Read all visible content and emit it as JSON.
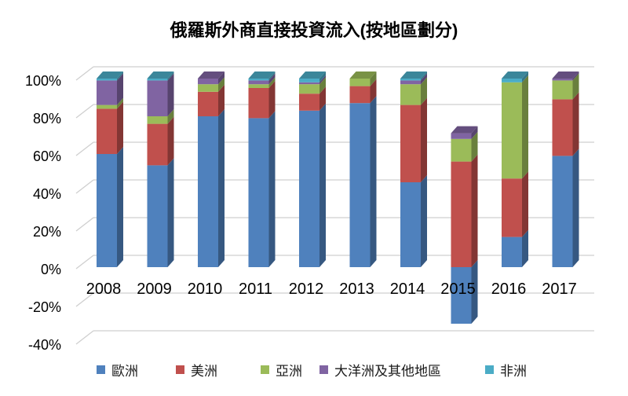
{
  "title": "俄羅斯外商直接投資流入(按地區劃分)",
  "chart_data": {
    "type": "bar",
    "stacked": true,
    "three_d": true,
    "title": "俄羅斯外商直接投資流入(按地區劃分)",
    "categories": [
      "2008",
      "2009",
      "2010",
      "2011",
      "2012",
      "2013",
      "2014",
      "2015",
      "2016",
      "2017"
    ],
    "series": [
      {
        "name": "歐洲",
        "color": "#4F81BD",
        "values": [
          60,
          54,
          80,
          79,
          83,
          87,
          45,
          -30,
          16,
          59
        ]
      },
      {
        "name": "美洲",
        "color": "#C0504D",
        "values": [
          24,
          22,
          13,
          16,
          9,
          9,
          41,
          56,
          31,
          30
        ]
      },
      {
        "name": "亞洲",
        "color": "#9BBB59",
        "values": [
          2,
          4,
          4,
          2,
          5,
          4,
          11,
          12,
          51,
          10
        ]
      },
      {
        "name": "大洋洲及其他地區",
        "color": "#8064A2",
        "values": [
          13,
          19,
          3,
          2,
          1,
          0,
          2,
          3,
          0,
          1
        ]
      },
      {
        "name": "非洲",
        "color": "#4BACC6",
        "values": [
          1,
          1,
          0,
          1,
          2,
          0,
          1,
          0,
          2,
          0
        ]
      }
    ],
    "y_ticks": [
      "100%",
      "80%",
      "60%",
      "40%",
      "20%",
      "0%",
      "-20%",
      "-40%"
    ],
    "y_tick_values": [
      100,
      80,
      60,
      40,
      20,
      0,
      -20,
      -40
    ],
    "ylim": [
      -40,
      100
    ],
    "unit": "%",
    "grid": true,
    "legend_position": "bottom"
  }
}
